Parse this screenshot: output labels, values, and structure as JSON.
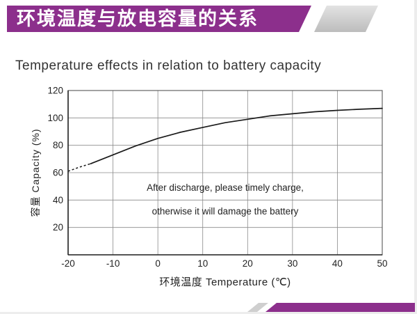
{
  "colors": {
    "accent": "#8C2F8C",
    "line": "#1a1a1a",
    "grid": "#8a8a8a",
    "axis": "#222222",
    "text": "#222222"
  },
  "banner": {
    "title": "环境温度与放电容量的关系"
  },
  "heading": {
    "title": "Temperature effects in relation to battery capacity"
  },
  "chart_data": {
    "type": "line",
    "title": "Temperature effects in relation to battery capacity",
    "xlabel": "环境温度 Temperature (℃)",
    "ylabel": "容量 Capacity (%)",
    "xlim": [
      -20,
      50
    ],
    "ylim": [
      0,
      120
    ],
    "x_ticks": [
      -20,
      -10,
      0,
      10,
      20,
      30,
      40,
      50
    ],
    "y_ticks": [
      20,
      40,
      60,
      80,
      100,
      120
    ],
    "grid": true,
    "legend": "none",
    "series": [
      {
        "name": "capacity-vs-temperature",
        "dashed_until": -15,
        "points": [
          [
            -20,
            61
          ],
          [
            -17.5,
            64
          ],
          [
            -15,
            66.5
          ],
          [
            -10,
            73
          ],
          [
            -5,
            79.5
          ],
          [
            0,
            85
          ],
          [
            5,
            89.5
          ],
          [
            10,
            93
          ],
          [
            15,
            96.5
          ],
          [
            20,
            99
          ],
          [
            25,
            101.5
          ],
          [
            30,
            103
          ],
          [
            35,
            104.5
          ],
          [
            40,
            105.5
          ],
          [
            45,
            106.3
          ],
          [
            50,
            107
          ]
        ]
      }
    ],
    "annotations": [
      "After discharge, please timely charge,",
      "otherwise it will damage the battery"
    ]
  }
}
